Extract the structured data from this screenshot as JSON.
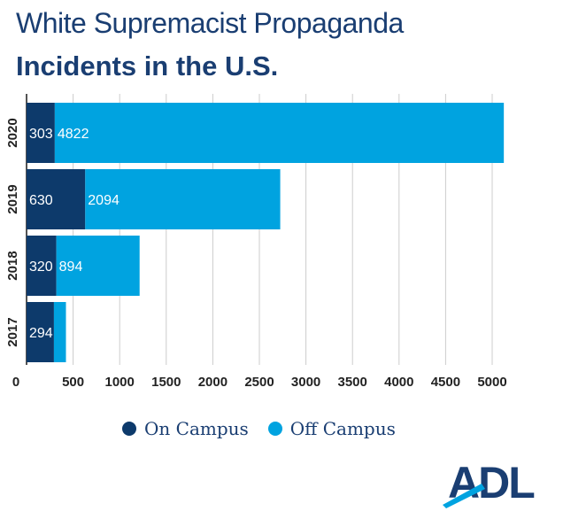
{
  "title": {
    "line1": "White Supremacist Propaganda",
    "line2": "Incidents in the U.S."
  },
  "colors": {
    "on_campus": "#0d3a6b",
    "off_campus": "#00a3e0",
    "grid": "#cccccc",
    "title": "#1a3e72"
  },
  "legend": {
    "on_campus": "On Campus",
    "off_campus": "Off Campus"
  },
  "logo": {
    "text": "ADL"
  },
  "chart_data": {
    "type": "bar",
    "orientation": "horizontal",
    "stacked": true,
    "categories": [
      "2020",
      "2019",
      "2018",
      "2017"
    ],
    "series": [
      {
        "name": "On Campus",
        "values": [
          303,
          630,
          320,
          294
        ]
      },
      {
        "name": "Off Campus",
        "values": [
          4822,
          2094,
          894,
          129
        ]
      }
    ],
    "data_labels": {
      "On Campus": [
        "303",
        "630",
        "320",
        "294"
      ],
      "Off Campus": [
        "4822",
        "2094",
        "894",
        ""
      ]
    },
    "x_ticks": [
      "0",
      "500",
      "1000",
      "1500",
      "2000",
      "2500",
      "3000",
      "3500",
      "4000",
      "4500",
      "5000"
    ],
    "xlim": [
      0,
      5000
    ],
    "grid": true,
    "legend_position": "bottom"
  }
}
